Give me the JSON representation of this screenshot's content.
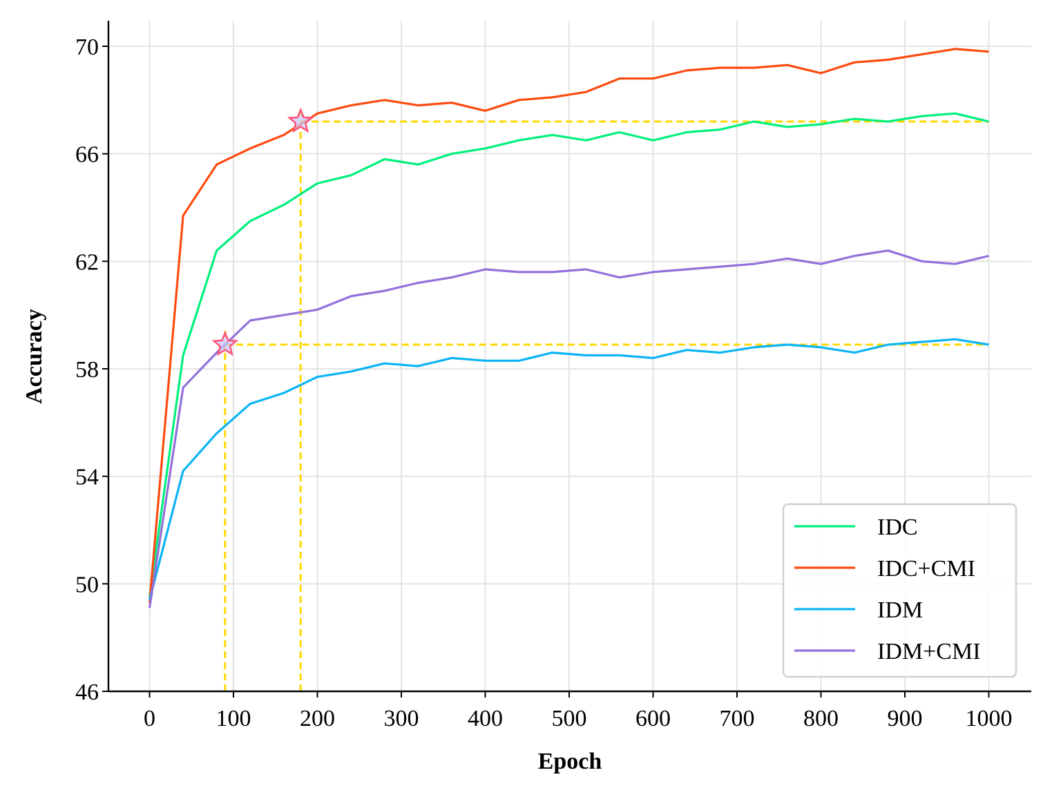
{
  "chart_data": {
    "type": "line",
    "xlabel": "Epoch",
    "ylabel": "Accuracy",
    "xlim": [
      -50,
      1050
    ],
    "ylim": [
      46,
      71
    ],
    "xticks": [
      0,
      100,
      200,
      300,
      400,
      500,
      600,
      700,
      800,
      900,
      1000
    ],
    "yticks": [
      46,
      50,
      54,
      58,
      62,
      66,
      70
    ],
    "grid": true,
    "legend_position": "lower-right",
    "x": [
      0,
      40,
      80,
      120,
      160,
      200,
      240,
      280,
      320,
      360,
      400,
      440,
      480,
      520,
      560,
      600,
      640,
      680,
      720,
      760,
      800,
      840,
      880,
      920,
      960,
      1000
    ],
    "series": [
      {
        "name": "IDC",
        "color": "#00f07c",
        "values": [
          49.5,
          58.5,
          62.4,
          63.5,
          64.1,
          64.9,
          65.2,
          65.8,
          65.6,
          66.0,
          66.2,
          66.5,
          66.7,
          66.5,
          66.8,
          66.5,
          66.8,
          66.9,
          67.2,
          67.0,
          67.1,
          67.3,
          67.2,
          67.4,
          67.5,
          67.2
        ]
      },
      {
        "name": "IDC+CMI",
        "color": "#fd4a0f",
        "values": [
          49.3,
          63.7,
          65.6,
          66.2,
          66.7,
          67.5,
          67.8,
          68.0,
          67.8,
          67.9,
          67.6,
          68.0,
          68.1,
          68.3,
          68.8,
          68.8,
          69.1,
          69.2,
          69.2,
          69.3,
          69.0,
          69.4,
          69.5,
          69.7,
          69.9,
          69.8
        ]
      },
      {
        "name": "IDM",
        "color": "#0ab4f5",
        "values": [
          49.4,
          54.2,
          55.6,
          56.7,
          57.1,
          57.7,
          57.9,
          58.2,
          58.1,
          58.4,
          58.3,
          58.3,
          58.6,
          58.5,
          58.5,
          58.4,
          58.7,
          58.6,
          58.8,
          58.9,
          58.8,
          58.6,
          58.9,
          59.0,
          59.1,
          58.9
        ]
      },
      {
        "name": "IDM+CMI",
        "color": "#9370db",
        "values": [
          49.1,
          57.3,
          58.6,
          59.8,
          60.0,
          60.2,
          60.7,
          60.9,
          61.2,
          61.4,
          61.7,
          61.6,
          61.6,
          61.7,
          61.4,
          61.6,
          61.7,
          61.8,
          61.9,
          62.1,
          61.9,
          62.2,
          62.4,
          62.0,
          61.9,
          62.2
        ]
      }
    ],
    "reference_lines": [
      {
        "color": "#ffd700",
        "x": 180,
        "y": 67.2,
        "x_end": 1000
      },
      {
        "color": "#ffd700",
        "x": 90,
        "y": 58.9,
        "x_end": 1000
      }
    ],
    "markers": [
      {
        "shape": "star",
        "x": 180,
        "y": 67.2,
        "fill": "#c8c8ff",
        "edge": "#ff5577"
      },
      {
        "shape": "star",
        "x": 90,
        "y": 58.9,
        "fill": "#c8c8ff",
        "edge": "#ff5577"
      }
    ]
  }
}
